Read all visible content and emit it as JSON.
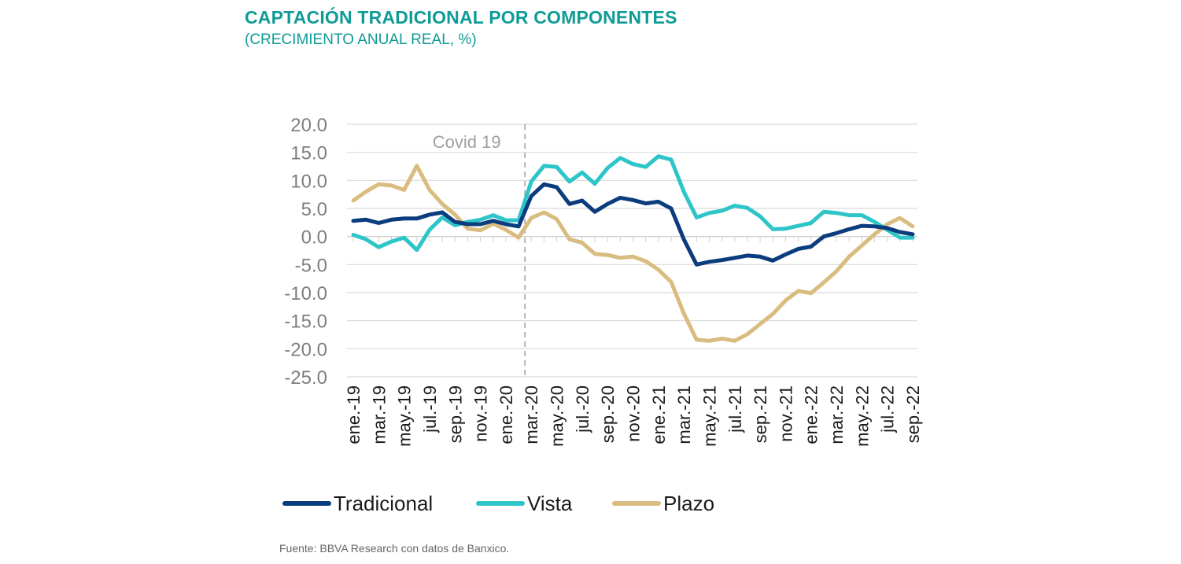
{
  "title": "CAPTACIÓN TRADICIONAL POR COMPONENTES",
  "subtitle": "(CRECIMIENTO ANUAL REAL, %)",
  "source": "Fuente: BBVA Research con datos de Banxico.",
  "chart_data": {
    "type": "line",
    "title": "CAPTACIÓN TRADICIONAL POR COMPONENTES",
    "subtitle": "(CRECIMIENTO ANUAL REAL, %)",
    "ylim": [
      -25,
      20
    ],
    "yticks": [
      20,
      15,
      10,
      5,
      0,
      -5,
      -10,
      -15,
      -20,
      -25
    ],
    "ytick_labels": [
      "20.0",
      "15.0",
      "10.0",
      "5.0",
      "0.0",
      "-5.0",
      "-10.0",
      "-15.0",
      "-20.0",
      "-25.0"
    ],
    "x_labels": [
      "ene.-19",
      "mar.-19",
      "may.-19",
      "jul.-19",
      "sep.-19",
      "nov.-19",
      "ene.-20",
      "mar.-20",
      "may.-20",
      "jul.-20",
      "sep.-20",
      "nov.-20",
      "ene.-21",
      "mar.-21",
      "may.-21",
      "jul.-21",
      "sep.-21",
      "nov.-21",
      "ene.-22",
      "mar.-22",
      "may.-22",
      "jul.-22",
      "sep.-22"
    ],
    "n_points": 45,
    "annotation": {
      "text": "Covid 19",
      "x_index": 13.5
    },
    "grid": true,
    "legend_position": "bottom",
    "series": [
      {
        "name": "Tradicional",
        "color": "#0b3c7d",
        "values": [
          2.8,
          3.0,
          2.4,
          3.0,
          3.2,
          3.2,
          3.9,
          4.3,
          2.6,
          2.2,
          2.2,
          2.8,
          2.2,
          1.8,
          7.2,
          9.3,
          8.8,
          5.8,
          6.4,
          4.4,
          5.8,
          6.9,
          6.5,
          5.9,
          6.2,
          5.0,
          -0.5,
          -5.0,
          -4.5,
          -4.2,
          -3.8,
          -3.4,
          -3.6,
          -4.3,
          -3.2,
          -2.2,
          -1.8,
          0.0,
          0.6,
          1.3,
          1.9,
          1.8,
          1.5,
          0.8,
          0.4
        ]
      },
      {
        "name": "Vista",
        "color": "#2ec5c8",
        "values": [
          0.3,
          -0.5,
          -1.9,
          -0.9,
          -0.2,
          -2.4,
          1.2,
          3.4,
          2.0,
          2.6,
          3.0,
          3.8,
          2.9,
          2.9,
          9.8,
          12.6,
          12.4,
          9.8,
          11.4,
          9.4,
          12.2,
          14.0,
          12.9,
          12.4,
          14.3,
          13.7,
          8.0,
          3.4,
          4.2,
          4.6,
          5.5,
          5.1,
          3.6,
          1.3,
          1.4,
          1.9,
          2.4,
          4.4,
          4.2,
          3.8,
          3.8,
          2.6,
          1.2,
          -0.2,
          -0.2
        ]
      },
      {
        "name": "Plazo",
        "color": "#d9bc7f",
        "values": [
          6.4,
          8.0,
          9.3,
          9.1,
          8.3,
          12.6,
          8.3,
          5.8,
          3.9,
          1.4,
          1.1,
          2.3,
          1.2,
          -0.2,
          3.3,
          4.3,
          3.1,
          -0.5,
          -1.1,
          -3.1,
          -3.3,
          -3.8,
          -3.6,
          -4.4,
          -5.9,
          -8.1,
          -13.7,
          -18.4,
          -18.6,
          -18.2,
          -18.6,
          -17.4,
          -15.6,
          -13.8,
          -11.4,
          -9.7,
          -10.1,
          -8.2,
          -6.2,
          -3.6,
          -1.6,
          0.4,
          2.2,
          3.3,
          1.8
        ]
      }
    ]
  }
}
